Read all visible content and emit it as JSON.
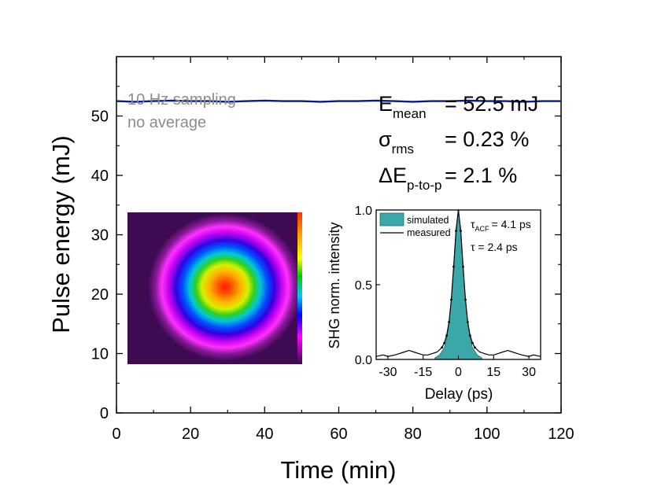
{
  "chart_data": [
    {
      "type": "line",
      "xlabel": "Time (min)",
      "ylabel": "Pulse energy (mJ)",
      "xlim": [
        0,
        120
      ],
      "ylim": [
        0,
        60
      ],
      "xticks": [
        0,
        20,
        40,
        60,
        80,
        100,
        120
      ],
      "yticks": [
        0,
        10,
        20,
        30,
        40,
        50
      ],
      "grid": false,
      "series": [
        {
          "color": "#0a1a8f",
          "x": [
            0,
            5,
            10,
            15,
            20,
            25,
            30,
            35,
            40,
            45,
            50,
            55,
            60,
            65,
            70,
            75,
            80,
            85,
            90,
            95,
            100,
            105,
            110,
            115,
            120
          ],
          "y": [
            52.5,
            52.4,
            52.5,
            52.6,
            52.5,
            52.5,
            52.4,
            52.5,
            52.6,
            52.5,
            52.5,
            52.4,
            52.5,
            52.5,
            52.6,
            52.5,
            52.4,
            52.5,
            52.5,
            52.6,
            52.5,
            52.5,
            52.4,
            52.5,
            52.5
          ]
        }
      ],
      "annotations": {
        "sampling_line1": "10 Hz sampling",
        "sampling_line2": "no average",
        "stat1_symbol": "E",
        "stat1_sub": "mean",
        "stat1_value": "= 52.5 mJ",
        "stat2_symbol": "σ",
        "stat2_sub": "rms",
        "stat2_value": "= 0.23 %",
        "stat3_symbol": "ΔE",
        "stat3_sub": "p-to-p",
        "stat3_value": "= 2.1 %"
      },
      "annotation_color": "#8c8c8c"
    },
    {
      "type": "area",
      "xlabel": "Delay (ps)",
      "ylabel": "SHG norm. intensity",
      "xlim": [
        -35,
        35
      ],
      "ylim": [
        0,
        1
      ],
      "xticks": [
        -30,
        -15,
        0,
        15,
        30
      ],
      "yticks": [
        0.0,
        0.5,
        1.0
      ],
      "ytick_labels": [
        "0.0",
        "0.5",
        "1.0"
      ],
      "legend": "top-left",
      "legend_entries": [
        "simulated",
        "measured"
      ],
      "fill_color": "#3aa8a8",
      "annotations": {
        "tau_acf_symbol": "τ",
        "tau_acf_sub": "ACF",
        "tau_acf_value": "= 4.1 ps",
        "tau_value": "τ = 2.4 ps"
      },
      "series": [
        {
          "name": "simulated",
          "x": [
            -10,
            -8,
            -6,
            -5,
            -4,
            -3,
            -2,
            -1,
            0,
            1,
            2,
            3,
            4,
            5,
            6,
            8,
            10
          ],
          "y": [
            0.01,
            0.03,
            0.08,
            0.14,
            0.24,
            0.4,
            0.62,
            0.87,
            1.0,
            0.87,
            0.62,
            0.4,
            0.24,
            0.14,
            0.08,
            0.03,
            0.01
          ]
        },
        {
          "name": "measured",
          "x": [
            -35,
            -32,
            -30,
            -27,
            -25,
            -23,
            -21,
            -19,
            -17,
            -15,
            -13,
            -11,
            -9,
            -7,
            -6,
            -5,
            -4,
            -3,
            -2,
            -1,
            0,
            1,
            2,
            3,
            4,
            5,
            6,
            7,
            9,
            11,
            13,
            15,
            17,
            19,
            21,
            23,
            25,
            27,
            30,
            32,
            35
          ],
          "y": [
            0.02,
            0.03,
            0.02,
            0.03,
            0.04,
            0.05,
            0.06,
            0.05,
            0.04,
            0.03,
            0.03,
            0.04,
            0.05,
            0.08,
            0.11,
            0.16,
            0.25,
            0.4,
            0.62,
            0.86,
            1.0,
            0.86,
            0.62,
            0.4,
            0.25,
            0.16,
            0.11,
            0.08,
            0.05,
            0.04,
            0.03,
            0.03,
            0.04,
            0.05,
            0.06,
            0.05,
            0.04,
            0.03,
            0.02,
            0.03,
            0.02
          ]
        }
      ]
    }
  ],
  "beam_image": {
    "type": "heatmap",
    "description_colors": [
      "#3b0a4a",
      "#ff00ff",
      "#0000ff",
      "#00c8ff",
      "#00cc00",
      "#ffff00",
      "#ff8800",
      "#ff0000"
    ]
  }
}
